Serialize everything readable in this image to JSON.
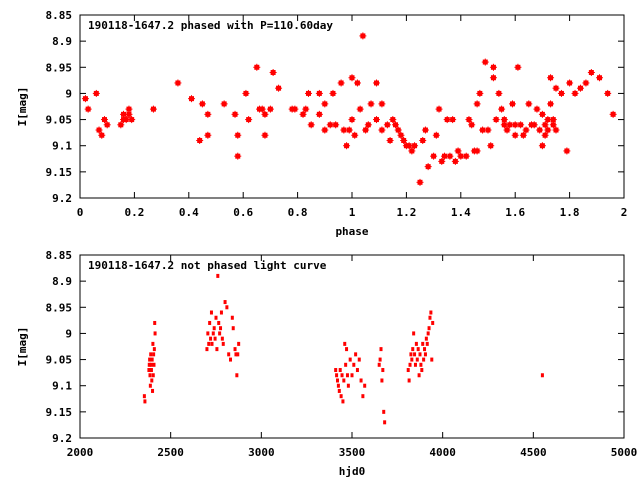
{
  "chart_data": [
    {
      "type": "scatter",
      "title": "190118-1647.2 phased with P=110.60day",
      "xlabel": "phase",
      "ylabel": "I[mag]",
      "xlim": [
        0,
        2
      ],
      "ylim": [
        9.2,
        8.85
      ],
      "y_inverted": true,
      "marker": "cross",
      "x_ticks": [
        "0",
        "0.2",
        "0.4",
        "0.6",
        "0.8",
        "1",
        "1.2",
        "1.4",
        "1.6",
        "1.8",
        "2"
      ],
      "x_tick_values": [
        0,
        0.2,
        0.4,
        0.6,
        0.8,
        1,
        1.2,
        1.4,
        1.6,
        1.8,
        2
      ],
      "y_ticks": [
        "8.85",
        "8.9",
        "8.95",
        "9",
        "9.05",
        "9.1",
        "9.15",
        "9.2"
      ],
      "y_tick_values": [
        8.85,
        8.9,
        8.95,
        9,
        9.05,
        9.1,
        9.15,
        9.2
      ],
      "series": [
        {
          "color": "#ff0000",
          "points": [
            [
              0.02,
              9.01
            ],
            [
              0.03,
              9.03
            ],
            [
              0.06,
              9.0
            ],
            [
              0.07,
              9.07
            ],
            [
              0.08,
              9.08
            ],
            [
              0.09,
              9.05
            ],
            [
              0.1,
              9.06
            ],
            [
              0.15,
              9.06
            ],
            [
              0.16,
              9.04
            ],
            [
              0.16,
              9.05
            ],
            [
              0.17,
              9.05
            ],
            [
              0.18,
              9.04
            ],
            [
              0.18,
              9.03
            ],
            [
              0.19,
              9.05
            ],
            [
              0.27,
              9.03
            ],
            [
              0.36,
              8.98
            ],
            [
              0.41,
              9.01
            ],
            [
              0.44,
              9.09
            ],
            [
              0.45,
              9.02
            ],
            [
              0.47,
              9.08
            ],
            [
              0.47,
              9.04
            ],
            [
              0.53,
              9.02
            ],
            [
              0.57,
              9.04
            ],
            [
              0.58,
              9.08
            ],
            [
              0.58,
              9.12
            ],
            [
              0.61,
              9.0
            ],
            [
              0.62,
              9.05
            ],
            [
              0.65,
              8.95
            ],
            [
              0.66,
              9.03
            ],
            [
              0.67,
              9.03
            ],
            [
              0.68,
              9.04
            ],
            [
              0.68,
              9.08
            ],
            [
              0.7,
              9.03
            ],
            [
              0.71,
              8.96
            ],
            [
              0.73,
              8.99
            ],
            [
              0.78,
              9.03
            ],
            [
              0.79,
              9.03
            ],
            [
              0.82,
              9.04
            ],
            [
              0.83,
              9.03
            ],
            [
              0.84,
              9.0
            ],
            [
              0.85,
              9.06
            ],
            [
              0.88,
              9.04
            ],
            [
              0.88,
              9.0
            ],
            [
              0.9,
              9.02
            ],
            [
              0.9,
              9.07
            ],
            [
              0.92,
              9.06
            ],
            [
              0.93,
              9.0
            ],
            [
              0.94,
              9.06
            ],
            [
              0.96,
              8.98
            ],
            [
              0.97,
              9.07
            ],
            [
              0.98,
              9.1
            ],
            [
              0.99,
              9.07
            ],
            [
              1.0,
              9.05
            ],
            [
              1.0,
              8.97
            ],
            [
              1.01,
              9.08
            ],
            [
              1.02,
              8.98
            ],
            [
              1.03,
              9.03
            ],
            [
              1.04,
              8.89
            ],
            [
              1.05,
              9.07
            ],
            [
              1.06,
              9.06
            ],
            [
              1.07,
              9.02
            ],
            [
              1.09,
              8.98
            ],
            [
              1.09,
              9.05
            ],
            [
              1.11,
              9.07
            ],
            [
              1.11,
              9.02
            ],
            [
              1.13,
              9.06
            ],
            [
              1.14,
              9.09
            ],
            [
              1.15,
              9.05
            ],
            [
              1.16,
              9.06
            ],
            [
              1.17,
              9.07
            ],
            [
              1.18,
              9.08
            ],
            [
              1.19,
              9.09
            ],
            [
              1.2,
              9.1
            ],
            [
              1.21,
              9.1
            ],
            [
              1.22,
              9.11
            ],
            [
              1.23,
              9.1
            ],
            [
              1.25,
              9.17
            ],
            [
              1.26,
              9.09
            ],
            [
              1.27,
              9.07
            ],
            [
              1.28,
              9.14
            ],
            [
              1.3,
              9.12
            ],
            [
              1.31,
              9.08
            ],
            [
              1.32,
              9.03
            ],
            [
              1.33,
              9.13
            ],
            [
              1.34,
              9.12
            ],
            [
              1.35,
              9.05
            ],
            [
              1.36,
              9.12
            ],
            [
              1.37,
              9.05
            ],
            [
              1.38,
              9.13
            ],
            [
              1.39,
              9.11
            ],
            [
              1.4,
              9.12
            ],
            [
              1.42,
              9.12
            ],
            [
              1.43,
              9.05
            ],
            [
              1.44,
              9.06
            ],
            [
              1.45,
              9.11
            ],
            [
              1.46,
              9.02
            ],
            [
              1.46,
              9.11
            ],
            [
              1.47,
              9.0
            ],
            [
              1.48,
              9.07
            ],
            [
              1.49,
              8.94
            ],
            [
              1.5,
              9.07
            ],
            [
              1.51,
              9.1
            ],
            [
              1.52,
              8.97
            ],
            [
              1.52,
              8.95
            ],
            [
              1.53,
              9.05
            ],
            [
              1.54,
              9.0
            ],
            [
              1.55,
              9.03
            ],
            [
              1.56,
              9.06
            ],
            [
              1.56,
              9.05
            ],
            [
              1.57,
              9.07
            ],
            [
              1.58,
              9.06
            ],
            [
              1.59,
              9.02
            ],
            [
              1.6,
              9.08
            ],
            [
              1.6,
              9.06
            ],
            [
              1.61,
              8.95
            ],
            [
              1.62,
              9.06
            ],
            [
              1.63,
              9.08
            ],
            [
              1.64,
              9.07
            ],
            [
              1.65,
              9.02
            ],
            [
              1.66,
              9.06
            ],
            [
              1.67,
              9.06
            ],
            [
              1.68,
              9.03
            ],
            [
              1.69,
              9.07
            ],
            [
              1.7,
              9.1
            ],
            [
              1.7,
              9.04
            ],
            [
              1.71,
              9.06
            ],
            [
              1.71,
              9.08
            ],
            [
              1.72,
              9.05
            ],
            [
              1.72,
              9.07
            ],
            [
              1.73,
              9.02
            ],
            [
              1.73,
              8.97
            ],
            [
              1.74,
              9.06
            ],
            [
              1.74,
              9.05
            ],
            [
              1.75,
              9.07
            ],
            [
              1.75,
              8.99
            ],
            [
              1.77,
              9.0
            ],
            [
              1.79,
              9.11
            ],
            [
              1.8,
              8.98
            ],
            [
              1.82,
              9.0
            ],
            [
              1.84,
              8.99
            ],
            [
              1.86,
              8.98
            ],
            [
              1.88,
              8.96
            ],
            [
              1.91,
              8.97
            ],
            [
              1.94,
              9.0
            ],
            [
              1.96,
              9.04
            ]
          ]
        }
      ]
    },
    {
      "type": "scatter",
      "title": "190118-1647.2 not phased light curve",
      "xlabel": "hjd0",
      "ylabel": "I[mag]",
      "xlim": [
        2000,
        5000
      ],
      "ylim": [
        9.2,
        8.85
      ],
      "y_inverted": true,
      "marker": "dot",
      "x_ticks": [
        "2000",
        "2500",
        "3000",
        "3500",
        "4000",
        "4500",
        "5000"
      ],
      "x_tick_values": [
        2000,
        2500,
        3000,
        3500,
        4000,
        4500,
        5000
      ],
      "y_ticks": [
        "8.85",
        "8.9",
        "8.95",
        "9",
        "9.05",
        "9.1",
        "9.15",
        "9.2"
      ],
      "y_tick_values": [
        8.85,
        8.9,
        8.95,
        9,
        9.05,
        9.1,
        9.15,
        9.2
      ],
      "series": [
        {
          "color": "#ff0000",
          "points": [
            [
              2355,
              9.12
            ],
            [
              2358,
              9.13
            ],
            [
              2380,
              9.07
            ],
            [
              2382,
              9.06
            ],
            [
              2384,
              9.05
            ],
            [
              2386,
              9.08
            ],
            [
              2388,
              9.1
            ],
            [
              2390,
              9.04
            ],
            [
              2392,
              9.06
            ],
            [
              2394,
              9.07
            ],
            [
              2396,
              9.09
            ],
            [
              2398,
              9.05
            ],
            [
              2400,
              9.11
            ],
            [
              2402,
              9.02
            ],
            [
              2404,
              9.08
            ],
            [
              2406,
              9.04
            ],
            [
              2408,
              9.06
            ],
            [
              2410,
              9.03
            ],
            [
              2412,
              8.98
            ],
            [
              2414,
              9.0
            ],
            [
              2700,
              9.03
            ],
            [
              2705,
              9.0
            ],
            [
              2710,
              9.02
            ],
            [
              2715,
              8.98
            ],
            [
              2720,
              9.01
            ],
            [
              2725,
              8.96
            ],
            [
              2728,
              9.02
            ],
            [
              2735,
              9.0
            ],
            [
              2740,
              8.99
            ],
            [
              2745,
              9.01
            ],
            [
              2750,
              8.97
            ],
            [
              2755,
              9.03
            ],
            [
              2760,
              8.89
            ],
            [
              2765,
              8.98
            ],
            [
              2770,
              9.0
            ],
            [
              2775,
              8.99
            ],
            [
              2780,
              8.96
            ],
            [
              2785,
              9.01
            ],
            [
              2790,
              9.02
            ],
            [
              2800,
              8.94
            ],
            [
              2810,
              8.95
            ],
            [
              2820,
              9.04
            ],
            [
              2830,
              9.05
            ],
            [
              2840,
              8.97
            ],
            [
              2845,
              8.99
            ],
            [
              2855,
              9.03
            ],
            [
              2860,
              9.04
            ],
            [
              2865,
              9.08
            ],
            [
              2870,
              9.04
            ],
            [
              2875,
              9.02
            ],
            [
              3410,
              9.07
            ],
            [
              3415,
              9.08
            ],
            [
              3420,
              9.09
            ],
            [
              3425,
              9.1
            ],
            [
              3430,
              9.11
            ],
            [
              3435,
              9.07
            ],
            [
              3440,
              9.12
            ],
            [
              3445,
              9.08
            ],
            [
              3450,
              9.13
            ],
            [
              3455,
              9.09
            ],
            [
              3460,
              9.02
            ],
            [
              3465,
              9.06
            ],
            [
              3470,
              9.03
            ],
            [
              3475,
              9.08
            ],
            [
              3480,
              9.1
            ],
            [
              3490,
              9.05
            ],
            [
              3500,
              9.08
            ],
            [
              3510,
              9.06
            ],
            [
              3520,
              9.04
            ],
            [
              3530,
              9.07
            ],
            [
              3540,
              9.05
            ],
            [
              3550,
              9.09
            ],
            [
              3560,
              9.12
            ],
            [
              3570,
              9.1
            ],
            [
              3650,
              9.06
            ],
            [
              3655,
              9.05
            ],
            [
              3660,
              9.03
            ],
            [
              3665,
              9.09
            ],
            [
              3670,
              9.07
            ],
            [
              3675,
              9.15
            ],
            [
              3680,
              9.17
            ],
            [
              3810,
              9.07
            ],
            [
              3815,
              9.09
            ],
            [
              3820,
              9.06
            ],
            [
              3825,
              9.04
            ],
            [
              3830,
              9.05
            ],
            [
              3835,
              9.03
            ],
            [
              3840,
              9.0
            ],
            [
              3845,
              9.04
            ],
            [
              3850,
              9.06
            ],
            [
              3855,
              9.02
            ],
            [
              3860,
              9.05
            ],
            [
              3865,
              9.03
            ],
            [
              3870,
              9.08
            ],
            [
              3875,
              9.04
            ],
            [
              3880,
              9.06
            ],
            [
              3885,
              9.07
            ],
            [
              3890,
              9.02
            ],
            [
              3895,
              9.05
            ],
            [
              3900,
              9.03
            ],
            [
              3905,
              9.04
            ],
            [
              3910,
              9.01
            ],
            [
              3915,
              9.02
            ],
            [
              3920,
              9.0
            ],
            [
              3925,
              8.99
            ],
            [
              3930,
              8.97
            ],
            [
              3935,
              8.96
            ],
            [
              3940,
              9.05
            ],
            [
              3945,
              8.98
            ],
            [
              4550,
              9.08
            ]
          ]
        }
      ]
    }
  ]
}
